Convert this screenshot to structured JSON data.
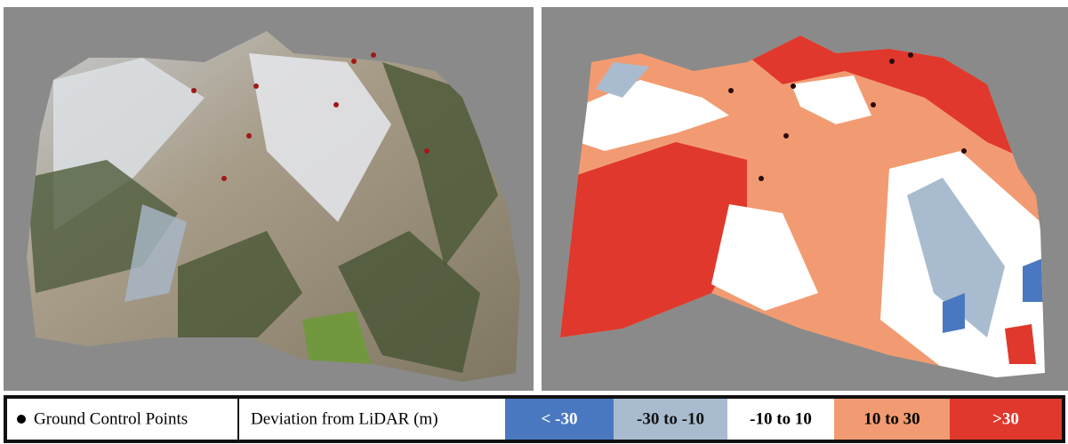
{
  "legend": {
    "ground_control_points": "Ground Control Points",
    "deviation_title": "Deviation from LiDAR (m)",
    "classes": [
      {
        "label": "< -30",
        "color": "#4a78c0"
      },
      {
        "label": "-30 to -10",
        "color": "#a9bccf"
      },
      {
        "label": "-10 to 10",
        "color": "#ffffff"
      },
      {
        "label": "10 to 30",
        "color": "#f29b72"
      },
      {
        "label": ">30",
        "color": "#e0382c"
      }
    ]
  }
}
